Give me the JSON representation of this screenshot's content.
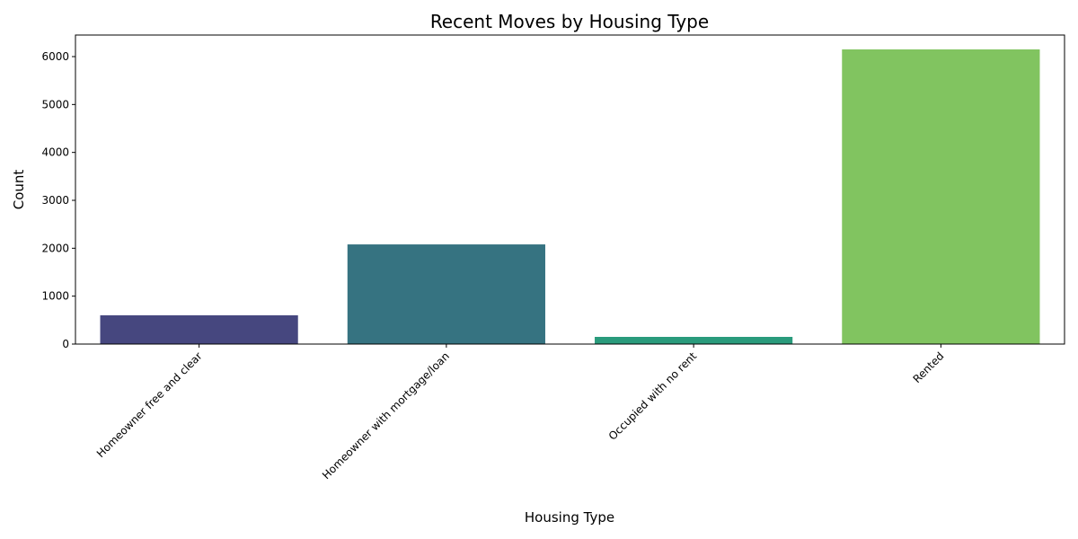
{
  "chart_data": {
    "type": "bar",
    "title": "Recent Moves by Housing Type",
    "xlabel": "Housing Type",
    "ylabel": "Count",
    "categories": [
      "Homeowner free and clear",
      "Homeowner with mortgage/loan",
      "Occupied with no rent",
      "Rented"
    ],
    "values": [
      600,
      2080,
      150,
      6150
    ],
    "colors": [
      "#46477f",
      "#367381",
      "#2a9b7c",
      "#81c460"
    ],
    "ylim": [
      0,
      6450
    ],
    "yticks": [
      0,
      1000,
      2000,
      3000,
      4000,
      5000,
      6000
    ],
    "ytick_labels": [
      "0",
      "1000",
      "2000",
      "3000",
      "4000",
      "5000",
      "6000"
    ],
    "grid": false,
    "legend": false
  }
}
